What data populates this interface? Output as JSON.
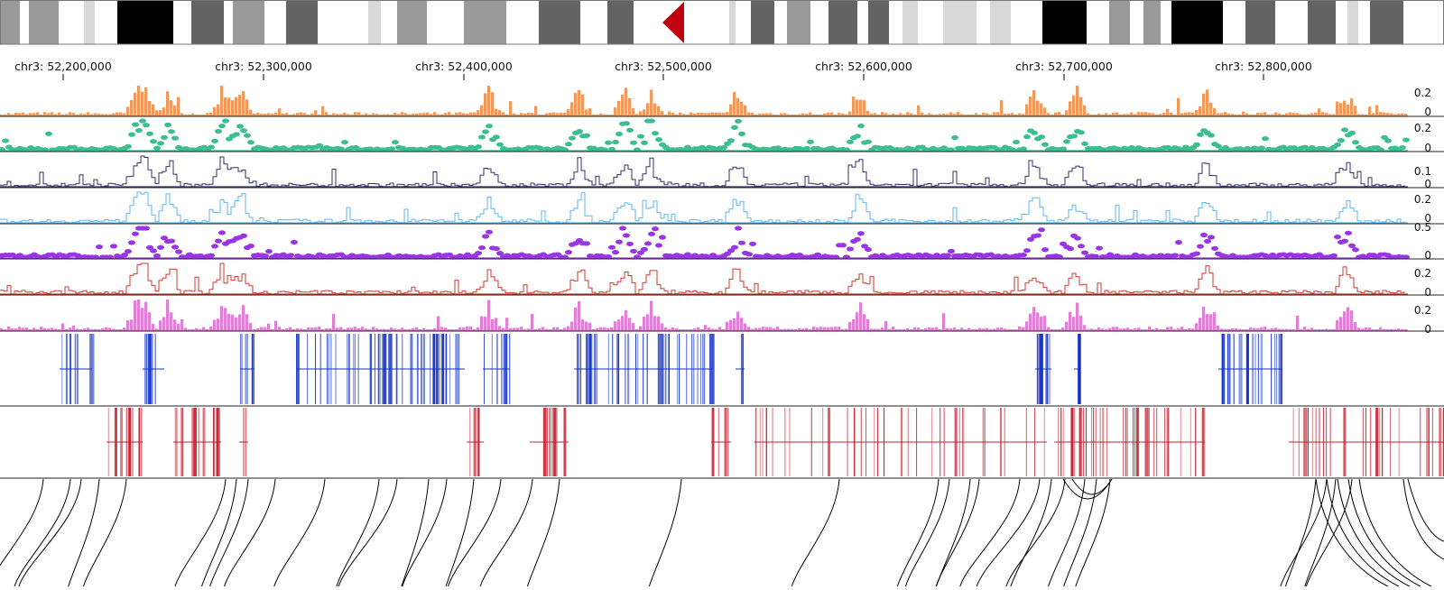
{
  "ideogram": {
    "chromosome": "chr3",
    "stain_colors": {
      "gneg": "#ffffff",
      "gpos25": "#d9d9d9",
      "gpos50": "#999999",
      "gpos75": "#636363",
      "gpos100": "#000000"
    },
    "centromere_color": "#c0000f"
  },
  "ruler": {
    "ticks": [
      "chr3: 52,200,000",
      "chr3: 52,300,000",
      "chr3: 52,400,000",
      "chr3: 52,500,000",
      "chr3: 52,600,000",
      "chr3: 52,700,000",
      "chr3: 52,800,000"
    ]
  },
  "tracks": [
    {
      "id": "track-1",
      "style": "bar",
      "color": "#f0995a",
      "ticks": [
        "0.2",
        "0"
      ]
    },
    {
      "id": "track-2",
      "style": "points",
      "color": "#3bbf8e",
      "ticks": [
        "0.2",
        "0"
      ]
    },
    {
      "id": "track-3",
      "style": "line",
      "color": "#33336b",
      "ticks": [
        "0.1",
        "0"
      ]
    },
    {
      "id": "track-4",
      "style": "line",
      "color": "#5fb7f0",
      "ticks": [
        "0.2",
        "0"
      ]
    },
    {
      "id": "track-5",
      "style": "points",
      "color": "#9a35e6",
      "ticks": [
        "0.5",
        "0"
      ]
    },
    {
      "id": "track-6",
      "style": "line",
      "color": "#d13a2d",
      "ticks": [
        "0.2",
        "0"
      ]
    },
    {
      "id": "track-7",
      "style": "bar",
      "color": "#e07fd4",
      "ticks": [
        "0.2",
        "0"
      ]
    }
  ],
  "feature_tracks": [
    {
      "id": "blue-features",
      "color": "#1533c7"
    },
    {
      "id": "red-features",
      "color": "#c8202f"
    }
  ],
  "links_track": {
    "id": "interaction-arcs",
    "color": "#000000"
  }
}
